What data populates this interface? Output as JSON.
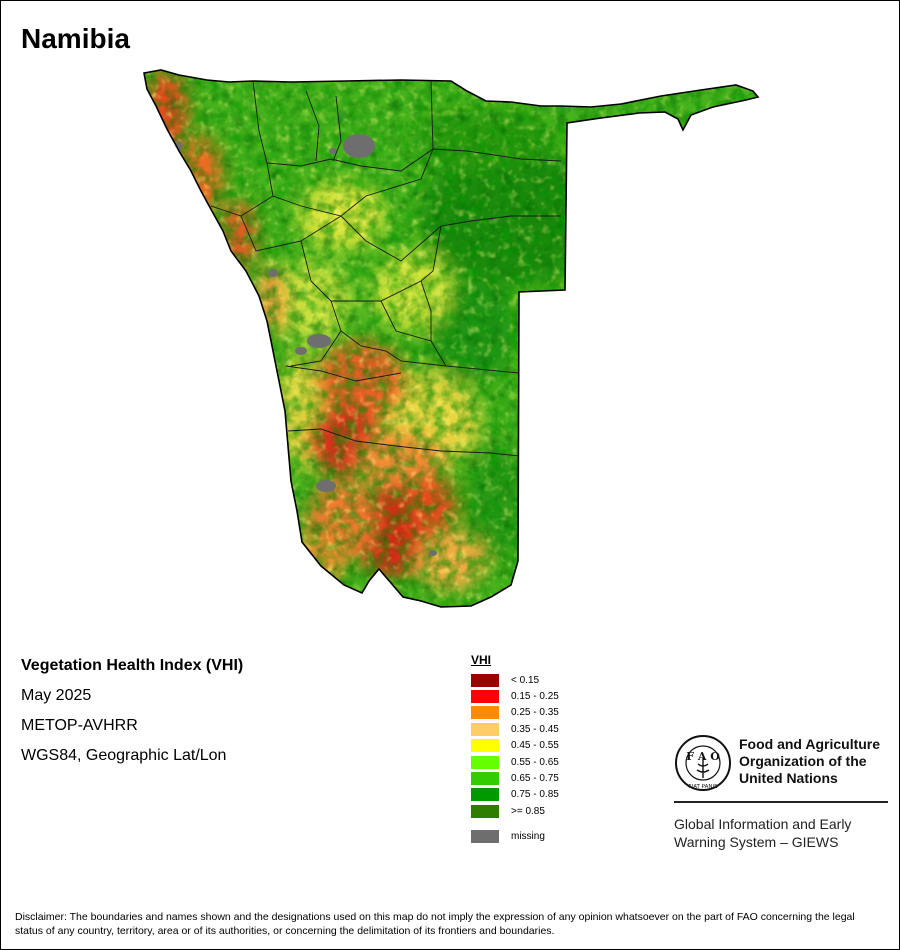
{
  "title": "Namibia",
  "info": {
    "product": "Vegetation Health Index (VHI)",
    "date": "May 2025",
    "sensor": "METOP-AVHRR",
    "projection": "WGS84, Geographic Lat/Lon"
  },
  "legend": {
    "title": "VHI",
    "classes": [
      {
        "label": "< 0.15",
        "color": "#990000"
      },
      {
        "label": "0.15 - 0.25",
        "color": "#ff0000"
      },
      {
        "label": "0.25 - 0.35",
        "color": "#ff8c00"
      },
      {
        "label": "0.35 - 0.45",
        "color": "#ffcc66"
      },
      {
        "label": "0.45 - 0.55",
        "color": "#ffff00"
      },
      {
        "label": "0.55 - 0.65",
        "color": "#66ff00"
      },
      {
        "label": "0.65 - 0.75",
        "color": "#33cc00"
      },
      {
        "label": "0.75 - 0.85",
        "color": "#009900"
      },
      {
        "label": ">= 0.85",
        "color": "#2e7d00"
      }
    ],
    "missing": {
      "label": "missing",
      "color": "#6e6e6e"
    }
  },
  "org": {
    "line1": "Food and Agriculture",
    "line2": "Organization of the",
    "line3": "United Nations",
    "giews_line1": "Global Information and Early",
    "giews_line2": "Warning System – GIEWS",
    "logo_text": "FIAT PANIS"
  },
  "disclaimer": "Disclaimer: The boundaries and names shown and the designations used on this map do not imply the expression of any opinion whatsoever on the part of FAO concerning the legal status of any country, territory, area or of its authorities, or concerning the delimitation of its frontiers and boundaries."
}
